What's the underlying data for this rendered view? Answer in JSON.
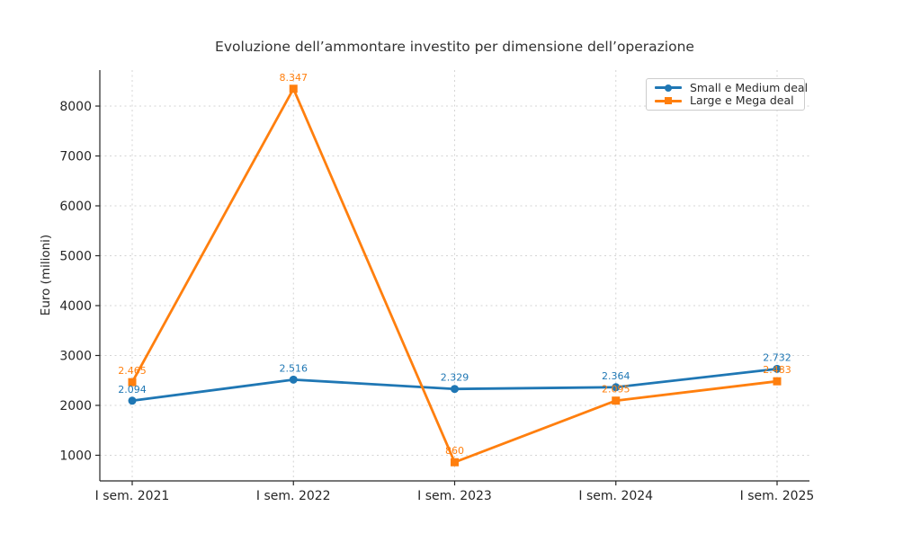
{
  "title": "Evoluzione dell’ammontare investito per dimensione dell’operazione",
  "chart_data": {
    "type": "line",
    "title": "Evoluzione dell’ammontare investito per dimensione dell’operazione",
    "xlabel": "",
    "ylabel": "Euro (milioni)",
    "categories": [
      "I sem. 2021",
      "I sem. 2022",
      "I sem. 2023",
      "I sem. 2024",
      "I sem. 2025"
    ],
    "y_ticks": [
      1000,
      2000,
      3000,
      4000,
      5000,
      6000,
      7000,
      8000
    ],
    "y_tick_labels": [
      "1000",
      "2000",
      "3000",
      "4000",
      "5000",
      "6000",
      "7000",
      "8000"
    ],
    "ylim": [
      486,
      8721
    ],
    "grid": "dashed, both axes",
    "legend_position": "upper right",
    "series": [
      {
        "name": "Small e Medium deal",
        "color": "#1f77b4",
        "marker": "circle",
        "values": [
          2094,
          2516,
          2329,
          2364,
          2732
        ],
        "labels": [
          "2.094",
          "2.516",
          "2.329",
          "2.364",
          "2.732"
        ]
      },
      {
        "name": "Large e Mega deal",
        "color": "#ff7f0e",
        "marker": "square",
        "values": [
          2465,
          8347,
          860,
          2095,
          2483
        ],
        "labels": [
          "2.465",
          "8.347",
          "860",
          "2.095",
          "2.483"
        ]
      }
    ]
  }
}
